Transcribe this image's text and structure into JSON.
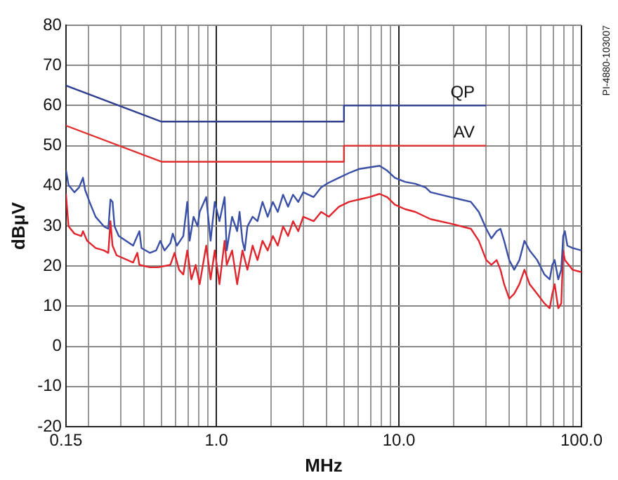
{
  "chart_data": {
    "type": "line",
    "xlabel": "MHz",
    "ylabel": "dBμV",
    "log": "x",
    "grid": true,
    "legend": false,
    "marker": "none",
    "line_style": "solid",
    "xlim": [
      0.15,
      100
    ],
    "ylim": [
      -20,
      80
    ],
    "xticks": [
      {
        "value": 0.15,
        "label": "0.15"
      },
      {
        "value": 0.2,
        "label": null
      },
      {
        "value": 0.3,
        "label": null
      },
      {
        "value": 0.4,
        "label": null
      },
      {
        "value": 0.5,
        "label": null
      },
      {
        "value": 0.6,
        "label": null
      },
      {
        "value": 0.7,
        "label": null
      },
      {
        "value": 0.8,
        "label": null
      },
      {
        "value": 0.9,
        "label": null
      },
      {
        "value": 1,
        "label": "1.0"
      },
      {
        "value": 2,
        "label": null
      },
      {
        "value": 3,
        "label": null
      },
      {
        "value": 4,
        "label": null
      },
      {
        "value": 5,
        "label": null
      },
      {
        "value": 6,
        "label": null
      },
      {
        "value": 7,
        "label": null
      },
      {
        "value": 8,
        "label": null
      },
      {
        "value": 9,
        "label": null
      },
      {
        "value": 10,
        "label": "10.0"
      },
      {
        "value": 20,
        "label": null
      },
      {
        "value": 30,
        "label": null
      },
      {
        "value": 40,
        "label": null
      },
      {
        "value": 50,
        "label": null
      },
      {
        "value": 60,
        "label": null
      },
      {
        "value": 70,
        "label": null
      },
      {
        "value": 80,
        "label": null
      },
      {
        "value": 90,
        "label": null
      },
      {
        "value": 100,
        "label": "100.0"
      }
    ],
    "yticks": [
      -20,
      -10,
      0,
      10,
      20,
      30,
      40,
      50,
      60,
      70,
      80
    ],
    "annotations": [
      "PI-4880-103007"
    ],
    "series": [
      {
        "color": "#3a4fa6",
        "x": [
          0.15,
          0.155,
          0.167,
          0.177,
          0.186,
          0.191,
          0.202,
          0.218,
          0.242,
          0.256,
          0.263,
          0.27,
          0.277,
          0.292,
          0.35,
          0.369,
          0.379,
          0.389,
          0.432,
          0.468,
          0.493,
          0.52,
          0.56,
          0.577,
          0.608,
          0.659,
          0.693,
          0.714,
          0.75,
          0.79,
          0.81,
          0.88,
          0.93,
          0.98,
          1.04,
          1.11,
          1.14,
          1.22,
          1.3,
          1.34,
          1.39,
          1.43,
          1.48,
          1.58,
          1.68,
          1.79,
          1.91,
          2.04,
          2.17,
          2.32,
          2.47,
          2.63,
          2.81,
          2.99,
          3.41,
          3.75,
          4.13,
          4.69,
          5.33,
          6.06,
          6.89,
          7.83,
          8.62,
          9.5,
          10.8,
          12.3,
          14,
          14.9,
          16.9,
          19.2,
          21.8,
          24.8,
          27.4,
          30.1,
          32.1,
          34.3,
          36,
          37.7,
          40.2,
          42.8,
          45.7,
          48.7,
          52,
          57.2,
          62.7,
          67,
          69.2,
          71.3,
          74.6,
          77.5,
          79.4,
          81.1,
          83.7,
          89.3,
          100
        ],
        "values": [
          44,
          40.2,
          38.4,
          39.6,
          42,
          39,
          36,
          32.3,
          29.9,
          29.3,
          36.6,
          36,
          29.9,
          27.5,
          25.1,
          27.5,
          28.7,
          24.5,
          23.3,
          23.9,
          26.3,
          23.9,
          25.7,
          28.1,
          25.1,
          27.5,
          36,
          26.3,
          32.3,
          29.9,
          33.5,
          37.2,
          26.3,
          36,
          31.2,
          37.2,
          23.9,
          32.3,
          28.7,
          33.5,
          26.3,
          23.9,
          29.9,
          32.3,
          31.2,
          36,
          32.3,
          36,
          33.5,
          37.8,
          34.8,
          37.8,
          36,
          38.4,
          37.2,
          39.6,
          40.8,
          42,
          43.2,
          44.2,
          44.6,
          45,
          43.8,
          42,
          41,
          40.5,
          39.6,
          38.4,
          37.8,
          37.2,
          36.6,
          36,
          33.5,
          29.3,
          26.9,
          28.7,
          29.3,
          26.3,
          21.5,
          19.1,
          21.5,
          26.3,
          23.9,
          21.5,
          17.9,
          16.7,
          20.3,
          21.5,
          16.7,
          19.1,
          27.5,
          28.7,
          25.1,
          24.5,
          23.9
        ]
      },
      {
        "color": "#e0252d",
        "x": [
          0.15,
          0.155,
          0.167,
          0.182,
          0.186,
          0.196,
          0.218,
          0.242,
          0.256,
          0.263,
          0.27,
          0.284,
          0.35,
          0.369,
          0.379,
          0.432,
          0.48,
          0.56,
          0.59,
          0.625,
          0.659,
          0.693,
          0.73,
          0.77,
          0.81,
          0.88,
          0.93,
          0.98,
          1.04,
          1.11,
          1.14,
          1.22,
          1.3,
          1.39,
          1.48,
          1.58,
          1.68,
          1.79,
          1.91,
          2.04,
          2.17,
          2.32,
          2.47,
          2.63,
          2.81,
          2.99,
          3.41,
          3.75,
          4.13,
          4.69,
          5.33,
          6.06,
          6.89,
          7.83,
          8.62,
          9.5,
          10.8,
          12.3,
          14.9,
          19.2,
          24.8,
          27.4,
          30.1,
          32.1,
          34.3,
          36,
          37.7,
          40.2,
          42.8,
          45.7,
          48.7,
          52,
          57.2,
          62.7,
          67,
          69.2,
          71.3,
          74.6,
          77.5,
          79.4,
          81.1,
          89.3,
          100
        ],
        "values": [
          38,
          29.9,
          28.1,
          27.5,
          28.7,
          26.3,
          24.5,
          23.9,
          23.3,
          31.2,
          25.1,
          22.7,
          20.9,
          23.3,
          20.3,
          19.7,
          19.7,
          20.3,
          23.3,
          19.1,
          17.9,
          23.9,
          16.7,
          20.3,
          15.5,
          25.1,
          16.7,
          23.9,
          15.5,
          26.3,
          20.3,
          23.9,
          15.5,
          23.9,
          19.1,
          25.1,
          21.5,
          26.3,
          23.9,
          27.5,
          25.1,
          29.9,
          27.5,
          31.2,
          28.7,
          32.3,
          31.2,
          33.5,
          32.3,
          34.8,
          36,
          36.6,
          37.2,
          38,
          37.2,
          35.3,
          34.2,
          33.5,
          31.7,
          30.6,
          29.3,
          26.3,
          21.5,
          20.3,
          21.5,
          19.1,
          15.5,
          11.9,
          13.1,
          15.5,
          19.1,
          15.5,
          13.1,
          10.7,
          9.5,
          13.1,
          15.5,
          9.5,
          10.7,
          23.9,
          21.5,
          19.1,
          18.5
        ]
      },
      {
        "name": "QP",
        "color": "#2f3f90",
        "x": [
          0.15,
          0.5,
          5,
          5,
          30
        ],
        "values": [
          65,
          56,
          56,
          60,
          60
        ]
      },
      {
        "name": "AV",
        "color": "#e03030",
        "x": [
          0.15,
          0.5,
          5,
          5,
          30
        ],
        "values": [
          55,
          46,
          46,
          50,
          50
        ]
      }
    ]
  }
}
